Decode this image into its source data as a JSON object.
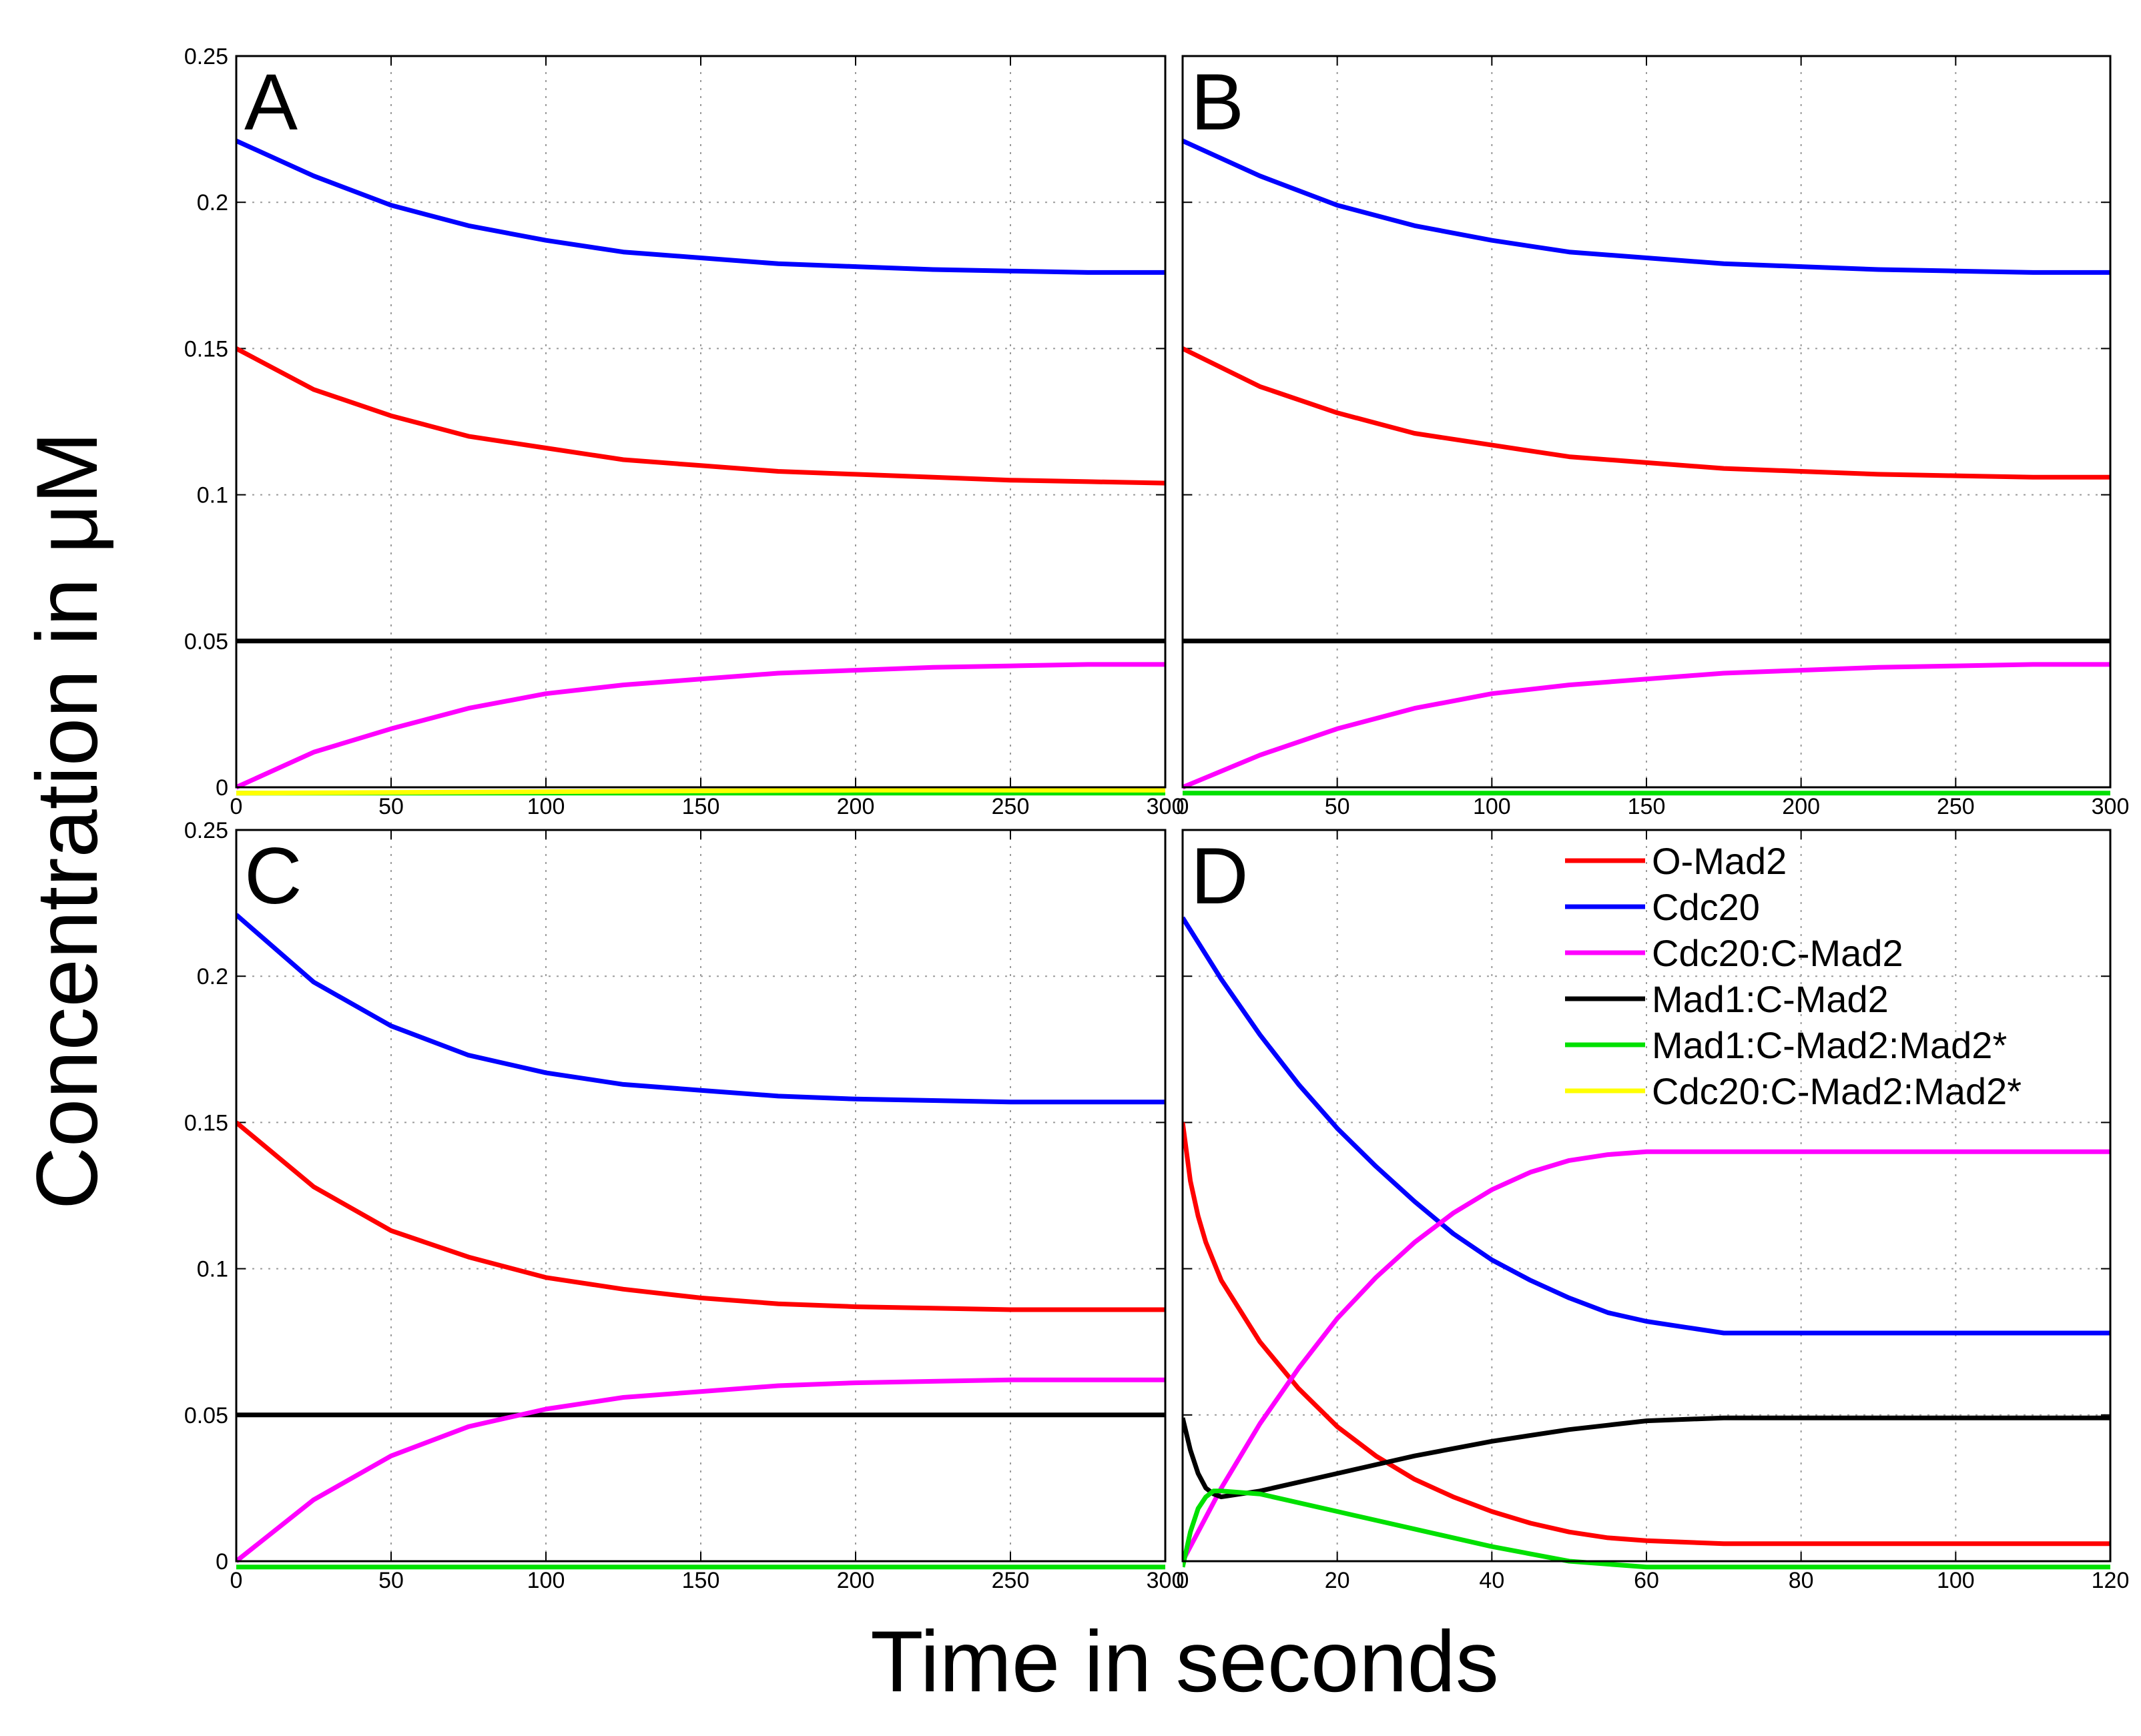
{
  "chart_data": {
    "type": "line",
    "ylabel": "Concentration in μM",
    "xlabel": "Time in seconds",
    "legend": {
      "placement": "top-right of panel D",
      "entries": [
        {
          "name": "O-Mad2",
          "color": "#ff0000"
        },
        {
          "name": "Cdc20",
          "color": "#0000ff"
        },
        {
          "name": "Cdc20:C-Mad2",
          "color": "#ff00ff"
        },
        {
          "name": "Mad1:C-Mad2",
          "color": "#000000"
        },
        {
          "name": "Mad1:C-Mad2:Mad2*",
          "color": "#00e000"
        },
        {
          "name": "Cdc20:C-Mad2:Mad2*",
          "color": "#ffff00"
        }
      ]
    },
    "panels": [
      {
        "label": "A",
        "xlim": [
          0,
          300
        ],
        "ylim": [
          0,
          0.25
        ],
        "xticks": [
          0,
          50,
          100,
          150,
          200,
          250,
          300
        ],
        "xtick_labels": [
          "0",
          "50",
          "100",
          "150",
          "200",
          "250",
          "300"
        ],
        "yticks": [
          0,
          0.05,
          0.1,
          0.15,
          0.2,
          0.25
        ],
        "ytick_labels": [
          "0",
          "0.05",
          "0.1",
          "0.15",
          "0.2",
          "0.25"
        ],
        "grid": true,
        "series": [
          {
            "name": "Cdc20",
            "color": "#0000ff",
            "x": [
              0,
              25,
              50,
              75,
              100,
              125,
              150,
              175,
              200,
              225,
              250,
              275,
              300
            ],
            "y": [
              0.221,
              0.209,
              0.199,
              0.192,
              0.187,
              0.183,
              0.181,
              0.179,
              0.178,
              0.177,
              0.1765,
              0.176,
              0.176
            ]
          },
          {
            "name": "O-Mad2",
            "color": "#ff0000",
            "x": [
              0,
              25,
              50,
              75,
              100,
              125,
              150,
              175,
              200,
              225,
              250,
              275,
              300
            ],
            "y": [
              0.15,
              0.136,
              0.127,
              0.12,
              0.116,
              0.112,
              0.11,
              0.108,
              0.107,
              0.106,
              0.105,
              0.1045,
              0.104
            ]
          },
          {
            "name": "Mad1:C-Mad2",
            "color": "#000000",
            "x": [
              0,
              300
            ],
            "y": [
              0.05,
              0.05
            ]
          },
          {
            "name": "Cdc20:C-Mad2",
            "color": "#ff00ff",
            "x": [
              0,
              25,
              50,
              75,
              100,
              125,
              150,
              175,
              200,
              225,
              250,
              275,
              300
            ],
            "y": [
              0,
              0.012,
              0.02,
              0.027,
              0.032,
              0.035,
              0.037,
              0.039,
              0.04,
              0.041,
              0.0415,
              0.042,
              0.042
            ]
          },
          {
            "name": "Mad1:C-Mad2:Mad2*",
            "color": "#00e000",
            "x": [
              0,
              300
            ],
            "y": [
              -0.002,
              -0.002
            ]
          },
          {
            "name": "Cdc20:C-Mad2:Mad2*",
            "color": "#ffff00",
            "x": [
              0,
              100,
              200,
              300
            ],
            "y": [
              -0.002,
              -0.0015,
              -0.001,
              -0.001
            ]
          }
        ]
      },
      {
        "label": "B",
        "xlim": [
          0,
          300
        ],
        "ylim": [
          0,
          0.25
        ],
        "xticks": [
          0,
          50,
          100,
          150,
          200,
          250,
          300
        ],
        "xtick_labels": [
          "0",
          "50",
          "100",
          "150",
          "200",
          "250",
          "300"
        ],
        "yticks": [
          0,
          0.05,
          0.1,
          0.15,
          0.2,
          0.25
        ],
        "ytick_labels": [],
        "grid": true,
        "series": [
          {
            "name": "Cdc20",
            "color": "#0000ff",
            "x": [
              0,
              25,
              50,
              75,
              100,
              125,
              150,
              175,
              200,
              225,
              250,
              275,
              300
            ],
            "y": [
              0.221,
              0.209,
              0.199,
              0.192,
              0.187,
              0.183,
              0.181,
              0.179,
              0.178,
              0.177,
              0.1765,
              0.176,
              0.176
            ]
          },
          {
            "name": "O-Mad2",
            "color": "#ff0000",
            "x": [
              0,
              25,
              50,
              75,
              100,
              125,
              150,
              175,
              200,
              225,
              250,
              275,
              300
            ],
            "y": [
              0.15,
              0.137,
              0.128,
              0.121,
              0.117,
              0.113,
              0.111,
              0.109,
              0.108,
              0.107,
              0.1065,
              0.106,
              0.106
            ]
          },
          {
            "name": "Mad1:C-Mad2",
            "color": "#000000",
            "x": [
              0,
              300
            ],
            "y": [
              0.05,
              0.05
            ]
          },
          {
            "name": "Cdc20:C-Mad2",
            "color": "#ff00ff",
            "x": [
              0,
              25,
              50,
              75,
              100,
              125,
              150,
              175,
              200,
              225,
              250,
              275,
              300
            ],
            "y": [
              0,
              0.011,
              0.02,
              0.027,
              0.032,
              0.035,
              0.037,
              0.039,
              0.04,
              0.041,
              0.0415,
              0.042,
              0.042
            ]
          },
          {
            "name": "Mad1:C-Mad2:Mad2*",
            "color": "#00e000",
            "x": [
              0,
              300
            ],
            "y": [
              -0.002,
              -0.002
            ]
          }
        ]
      },
      {
        "label": "C",
        "xlim": [
          0,
          300
        ],
        "ylim": [
          0,
          0.25
        ],
        "xticks": [
          0,
          50,
          100,
          150,
          200,
          250,
          300
        ],
        "xtick_labels": [
          "0",
          "50",
          "100",
          "150",
          "200",
          "250",
          "300"
        ],
        "yticks": [
          0,
          0.05,
          0.1,
          0.15,
          0.2,
          0.25
        ],
        "ytick_labels": [
          "0",
          "0.05",
          "0.1",
          "0.15",
          "0.2",
          "0.25"
        ],
        "grid": true,
        "series": [
          {
            "name": "Cdc20",
            "color": "#0000ff",
            "x": [
              0,
              25,
              50,
              75,
              100,
              125,
              150,
              175,
              200,
              225,
              250,
              275,
              300
            ],
            "y": [
              0.221,
              0.198,
              0.183,
              0.173,
              0.167,
              0.163,
              0.161,
              0.159,
              0.158,
              0.1575,
              0.157,
              0.157,
              0.157
            ]
          },
          {
            "name": "O-Mad2",
            "color": "#ff0000",
            "x": [
              0,
              25,
              50,
              75,
              100,
              125,
              150,
              175,
              200,
              225,
              250,
              275,
              300
            ],
            "y": [
              0.15,
              0.128,
              0.113,
              0.104,
              0.097,
              0.093,
              0.09,
              0.088,
              0.087,
              0.0865,
              0.086,
              0.086,
              0.086
            ]
          },
          {
            "name": "Mad1:C-Mad2",
            "color": "#000000",
            "x": [
              0,
              300
            ],
            "y": [
              0.05,
              0.05
            ]
          },
          {
            "name": "Cdc20:C-Mad2",
            "color": "#ff00ff",
            "x": [
              0,
              25,
              50,
              75,
              100,
              125,
              150,
              175,
              200,
              225,
              250,
              275,
              300
            ],
            "y": [
              0,
              0.021,
              0.036,
              0.046,
              0.052,
              0.056,
              0.058,
              0.06,
              0.061,
              0.0615,
              0.062,
              0.062,
              0.062
            ]
          },
          {
            "name": "Mad1:C-Mad2:Mad2*",
            "color": "#00e000",
            "x": [
              0,
              300
            ],
            "y": [
              -0.002,
              -0.002
            ]
          }
        ]
      },
      {
        "label": "D",
        "xlim": [
          0,
          120
        ],
        "ylim": [
          0,
          0.25
        ],
        "xticks": [
          0,
          20,
          40,
          60,
          80,
          100,
          120
        ],
        "xtick_labels": [
          "0",
          "20",
          "40",
          "60",
          "80",
          "100",
          "120"
        ],
        "yticks": [
          0,
          0.05,
          0.1,
          0.15,
          0.2,
          0.25
        ],
        "ytick_labels": [],
        "grid": true,
        "series": [
          {
            "name": "Cdc20",
            "color": "#0000ff",
            "x": [
              0,
              5,
              10,
              15,
              20,
              25,
              30,
              35,
              40,
              45,
              50,
              55,
              60,
              65,
              70,
              80,
              100,
              120
            ],
            "y": [
              0.22,
              0.199,
              0.18,
              0.163,
              0.148,
              0.135,
              0.123,
              0.112,
              0.103,
              0.096,
              0.09,
              0.085,
              0.082,
              0.08,
              0.078,
              0.078,
              0.078,
              0.078
            ]
          },
          {
            "name": "O-Mad2",
            "color": "#ff0000",
            "x": [
              0,
              1,
              2,
              3,
              5,
              10,
              15,
              20,
              25,
              30,
              35,
              40,
              45,
              50,
              55,
              60,
              65,
              70,
              80,
              100,
              120
            ],
            "y": [
              0.15,
              0.13,
              0.118,
              0.109,
              0.096,
              0.075,
              0.059,
              0.046,
              0.036,
              0.028,
              0.022,
              0.017,
              0.013,
              0.01,
              0.008,
              0.007,
              0.0065,
              0.006,
              0.006,
              0.006,
              0.006
            ]
          },
          {
            "name": "Cdc20:C-Mad2",
            "color": "#ff00ff",
            "x": [
              0,
              5,
              10,
              15,
              20,
              25,
              30,
              35,
              40,
              45,
              50,
              55,
              60,
              65,
              70,
              80,
              100,
              120
            ],
            "y": [
              0,
              0.025,
              0.047,
              0.066,
              0.083,
              0.097,
              0.109,
              0.119,
              0.127,
              0.133,
              0.137,
              0.139,
              0.14,
              0.14,
              0.14,
              0.14,
              0.14,
              0.14
            ]
          },
          {
            "name": "Mad1:C-Mad2",
            "color": "#000000",
            "x": [
              0,
              1,
              2,
              3,
              4,
              5,
              10,
              20,
              30,
              40,
              50,
              60,
              70,
              80,
              100,
              120
            ],
            "y": [
              0.049,
              0.038,
              0.03,
              0.025,
              0.023,
              0.022,
              0.024,
              0.03,
              0.036,
              0.041,
              0.045,
              0.048,
              0.049,
              0.049,
              0.049,
              0.049
            ]
          },
          {
            "name": "Mad1:C-Mad2:Mad2*",
            "color": "#00e000",
            "x": [
              0,
              1,
              2,
              3,
              4,
              5,
              10,
              20,
              30,
              40,
              50,
              60,
              65,
              80,
              100,
              120
            ],
            "y": [
              -0.002,
              0.01,
              0.018,
              0.022,
              0.024,
              0.024,
              0.023,
              0.017,
              0.011,
              0.005,
              0.0,
              -0.002,
              -0.002,
              -0.002,
              -0.002,
              -0.002
            ]
          }
        ]
      }
    ]
  }
}
